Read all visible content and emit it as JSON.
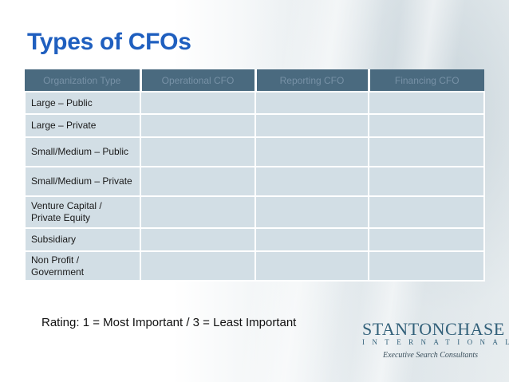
{
  "slide": {
    "title": "Types of CFOs",
    "rating_note": "Rating: 1 = Most Important / 3 = Least Important"
  },
  "table": {
    "headers": [
      "Organization Type",
      "Operational CFO",
      "Reporting CFO",
      "Financing CFO"
    ],
    "rows": [
      {
        "label": "Large – Public"
      },
      {
        "label": "Large – Private"
      },
      {
        "label": "Small/Medium – Public"
      },
      {
        "label": "Small/Medium – Private"
      },
      {
        "label": "Venture Capital / Private Equity"
      },
      {
        "label": "Subsidiary"
      },
      {
        "label": "Non Profit / Government"
      }
    ]
  },
  "logo": {
    "name_first": "Stanton",
    "name_second": "Chase",
    "subline": "INTERNATIONAL",
    "tagline": "Executive Search Consultants"
  },
  "colors": {
    "title": "#1f5fbf",
    "header_bg": "#4a6a7f",
    "header_text": "#7791a6",
    "cell_bg": "#d2dee5",
    "logo": "#33617a"
  }
}
